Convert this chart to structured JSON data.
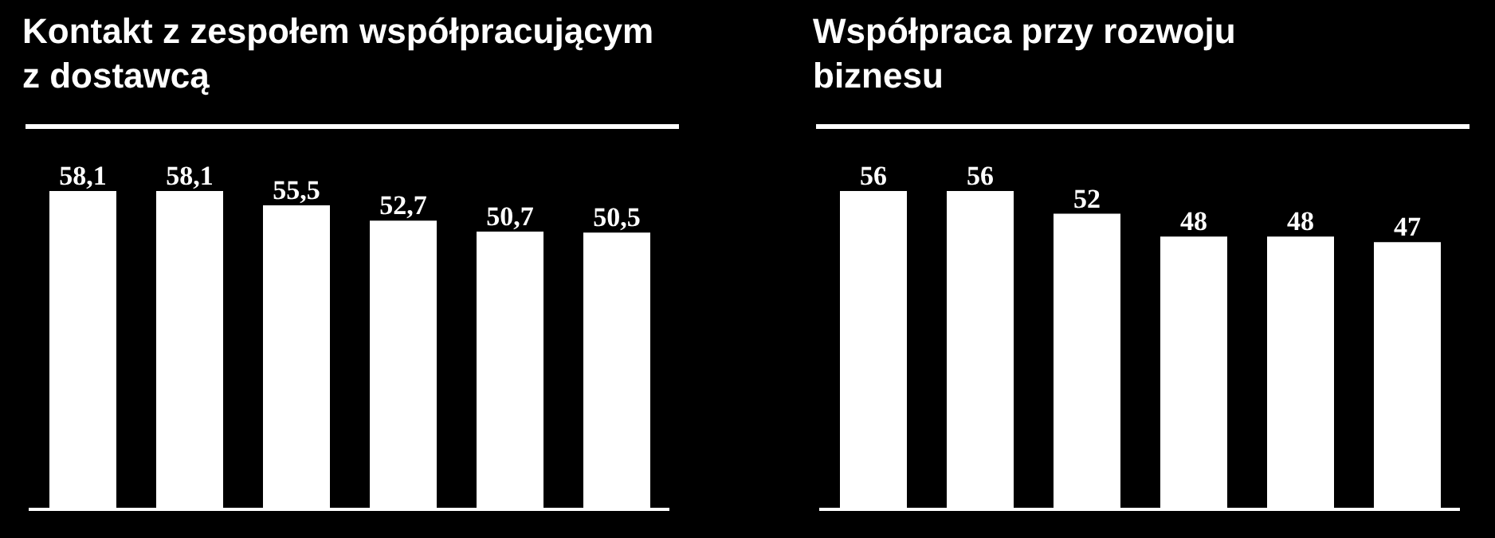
{
  "chart_data": [
    {
      "type": "bar",
      "title": "Kontakt z zespołem współpracującym z dostawcą",
      "categories": [
        null,
        null,
        null,
        null,
        null,
        null
      ],
      "values": [
        58.1,
        58.1,
        55.5,
        52.7,
        50.7,
        50.5
      ],
      "value_labels": [
        "58,1",
        "58,1",
        "55,5",
        "52,7",
        "50,7",
        "50,5"
      ],
      "color": "#ffffff"
    },
    {
      "type": "bar",
      "title": "Współpraca przy rozwoju biznesu",
      "categories": [
        null,
        null,
        null,
        null,
        null,
        null
      ],
      "values": [
        56,
        56,
        52,
        48,
        48,
        47
      ],
      "data_labels": true,
      "color": "#ffffff"
    }
  ]
}
